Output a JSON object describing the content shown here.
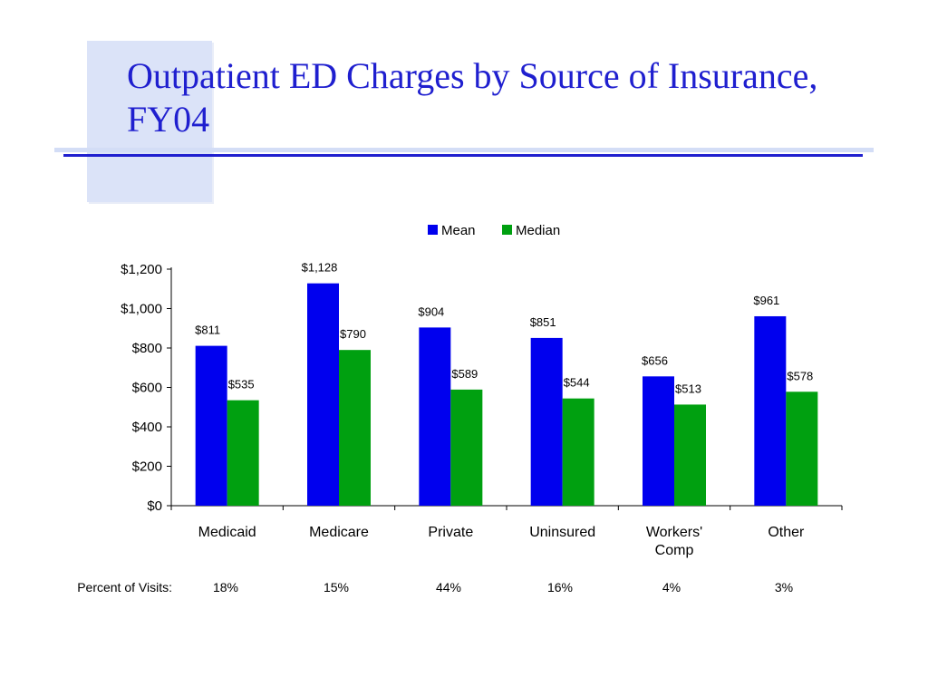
{
  "slide": {
    "title": "Outpatient ED Charges by Source of Insurance, FY04"
  },
  "chart_data": {
    "type": "bar",
    "categories": [
      "Medicaid",
      "Medicare",
      "Private",
      "Uninsured",
      "Workers' Comp",
      "Other"
    ],
    "category_lines": [
      [
        "Medicaid"
      ],
      [
        "Medicare"
      ],
      [
        "Private"
      ],
      [
        "Uninsured"
      ],
      [
        "Workers'",
        "Comp"
      ],
      [
        "Other"
      ]
    ],
    "series": [
      {
        "name": "Mean",
        "color": "#0000ee",
        "values": [
          811,
          1128,
          904,
          851,
          656,
          961
        ],
        "labels": [
          "$811",
          "$1,128",
          "$904",
          "$851",
          "$656",
          "$961"
        ]
      },
      {
        "name": "Median",
        "color": "#00a010",
        "values": [
          535,
          790,
          589,
          544,
          513,
          578
        ],
        "labels": [
          "$535",
          "$790",
          "$589",
          "$544",
          "$513",
          "$578"
        ]
      }
    ],
    "ylim": [
      0,
      1200
    ],
    "yticks": [
      0,
      200,
      400,
      600,
      800,
      1000,
      1200
    ],
    "ytick_labels": [
      "$0",
      "$200",
      "$400",
      "$600",
      "$800",
      "$1,000",
      "$1,200"
    ],
    "legend_position": "top",
    "grid": false
  },
  "percent_of_visits": {
    "label": "Percent of Visits:",
    "values": [
      "18%",
      "15%",
      "44%",
      "16%",
      "4%",
      "3%"
    ]
  }
}
